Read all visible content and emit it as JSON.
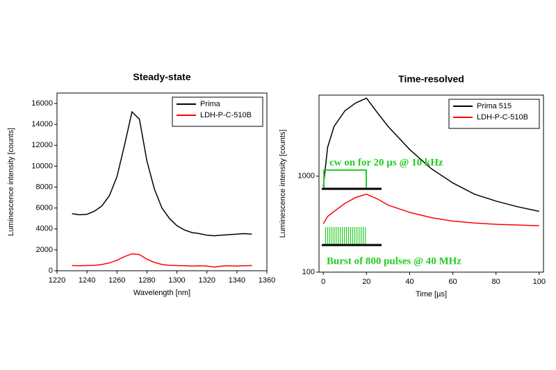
{
  "chart_data": [
    {
      "type": "line",
      "title": "Steady-state",
      "x_label": "Wavelength [nm]",
      "y_label": "Luminescence intensity [counts]",
      "x": [
        1230,
        1235,
        1240,
        1245,
        1250,
        1255,
        1260,
        1265,
        1270,
        1275,
        1280,
        1285,
        1290,
        1295,
        1300,
        1305,
        1310,
        1315,
        1320,
        1325,
        1330,
        1335,
        1340,
        1345,
        1350
      ],
      "series": [
        {
          "name": "Prima",
          "color": "#000000",
          "values": [
            5450,
            5350,
            5400,
            5700,
            6200,
            7200,
            9000,
            12000,
            15200,
            14500,
            10500,
            7800,
            6000,
            5000,
            4300,
            3900,
            3650,
            3550,
            3400,
            3350,
            3400,
            3450,
            3500,
            3550,
            3500
          ]
        },
        {
          "name": "LDH-P-C-510B",
          "color": "#ff0000",
          "values": [
            500,
            480,
            500,
            520,
            600,
            750,
            1000,
            1350,
            1620,
            1550,
            1100,
            800,
            600,
            520,
            500,
            480,
            450,
            470,
            450,
            350,
            450,
            470,
            450,
            480,
            500
          ]
        }
      ],
      "xlim": [
        1220,
        1360
      ],
      "xticks": [
        1220,
        1240,
        1260,
        1280,
        1300,
        1320,
        1340,
        1360
      ],
      "ylim": [
        0,
        17000
      ],
      "yticks": [
        0,
        2000,
        4000,
        6000,
        8000,
        10000,
        12000,
        14000,
        16000
      ],
      "log_y": false,
      "legend": "upper right"
    },
    {
      "type": "line",
      "title": "Time-resolved",
      "x_label": "Time [µs]",
      "y_label": "Luminescence intensity [counts]",
      "x": [
        0,
        2,
        5,
        10,
        15,
        20,
        25,
        30,
        40,
        50,
        60,
        70,
        80,
        90,
        100
      ],
      "series": [
        {
          "name": "Prima 515",
          "color": "#000000",
          "values": [
            780,
            2000,
            3300,
            4800,
            5800,
            6500,
            4600,
            3300,
            1900,
            1200,
            850,
            650,
            550,
            480,
            430
          ]
        },
        {
          "name": "LDH-P-C-510B",
          "color": "#ff0000",
          "values": [
            320,
            380,
            430,
            520,
            600,
            650,
            580,
            500,
            420,
            370,
            340,
            325,
            315,
            310,
            305
          ]
        }
      ],
      "xlim": [
        -2,
        102
      ],
      "xticks": [
        0,
        20,
        40,
        60,
        80,
        100
      ],
      "ylim": [
        100,
        7000
      ],
      "yticks": [
        100,
        1000
      ],
      "log_y": true,
      "legend": "upper right",
      "annotations": [
        "cw on for 20 µs @ 10 kHz",
        "Burst of 800 pulses @ 40 MHz"
      ]
    }
  ]
}
